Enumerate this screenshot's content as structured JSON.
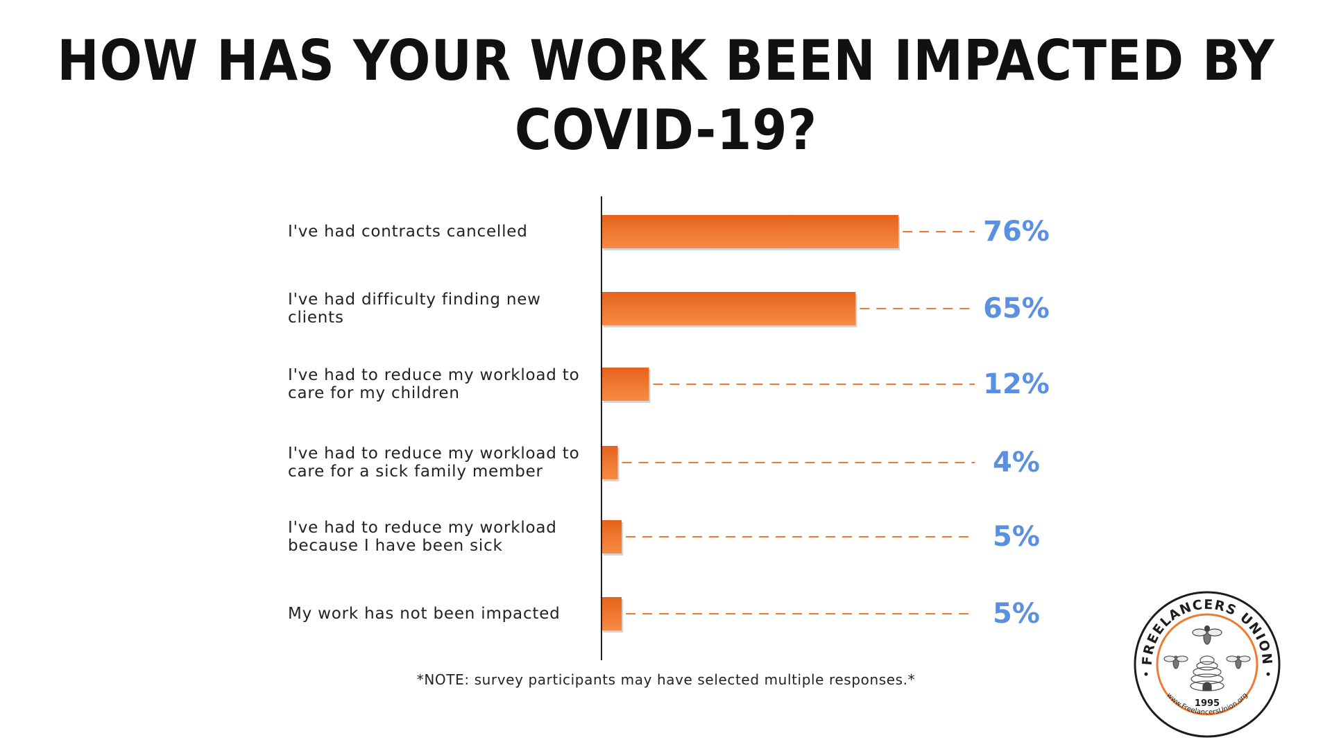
{
  "chart_data": {
    "type": "bar",
    "orientation": "horizontal",
    "title": "HOW HAS YOUR WORK BEEN IMPACTED BY COVID-19?",
    "categories": [
      "I've had contracts cancelled",
      "I've had difficulty finding new clients",
      "I've had to reduce my workload to care for my children",
      "I've had to reduce my workload to care for a sick family member",
      "I've had to reduce my workload because I have been sick",
      "My work has not been impacted"
    ],
    "values": [
      76,
      65,
      12,
      4,
      5,
      5
    ],
    "value_labels": [
      "76%",
      "65%",
      "12%",
      "4%",
      "5%",
      "5%"
    ],
    "unit": "%",
    "xlim": [
      0,
      100
    ],
    "grid": false,
    "legend": "none",
    "colors": {
      "bar": "#f07a32",
      "bar_dark": "#e5611b",
      "value_text": "#5b8fe0",
      "leader": "#f07a32"
    }
  },
  "title_lines": [
    "HOW HAS YOUR WORK BEEN IMPACTED BY",
    "COVID-19?"
  ],
  "note": "*NOTE: survey participants may have selected multiple responses.*",
  "logo": {
    "org_name": "FREELANCERS UNION",
    "year": "1995",
    "url": "www.FreelancersUnion.org",
    "icon": "beehive-icon",
    "colors": {
      "ring": "#1c1c1c",
      "accent": "#f07a32"
    }
  }
}
